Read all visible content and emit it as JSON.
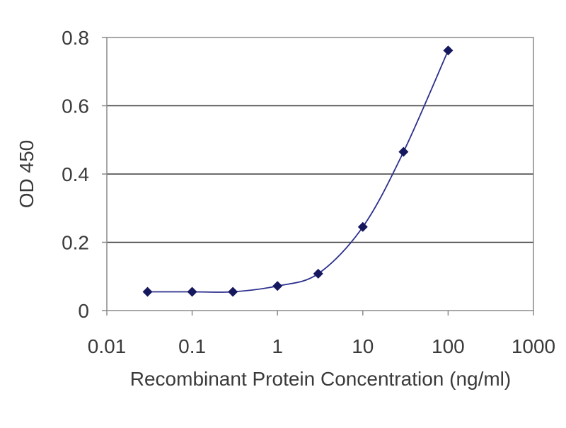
{
  "chart_data": {
    "type": "line",
    "title": "",
    "xlabel": "Recombinant Protein Concentration (ng/ml)",
    "ylabel": "OD 450",
    "xscale": "log",
    "xlim": [
      0.01,
      1000
    ],
    "ylim": [
      0,
      0.8
    ],
    "x_ticks": [
      0.01,
      0.1,
      1,
      10,
      100,
      1000
    ],
    "x_tick_labels": [
      "0.01",
      "0.1",
      "1",
      "10",
      "100",
      "1000"
    ],
    "y_ticks": [
      0,
      0.2,
      0.4,
      0.6,
      0.8
    ],
    "y_tick_labels": [
      "0",
      "0.2",
      "0.4",
      "0.6",
      "0.8"
    ],
    "grid": "horizontal",
    "legend": "none",
    "series": [
      {
        "x": [
          0.03,
          0.1,
          0.3,
          1,
          3,
          10,
          30,
          100
        ],
        "y": [
          0.055,
          0.055,
          0.055,
          0.072,
          0.108,
          0.245,
          0.465,
          0.762
        ]
      }
    ],
    "colors": {
      "line": "#2b2f8c",
      "marker": "#16185e",
      "grid": "#3c3c3c",
      "frame": "#8a8a8a",
      "text": "#3a3a3a"
    }
  }
}
